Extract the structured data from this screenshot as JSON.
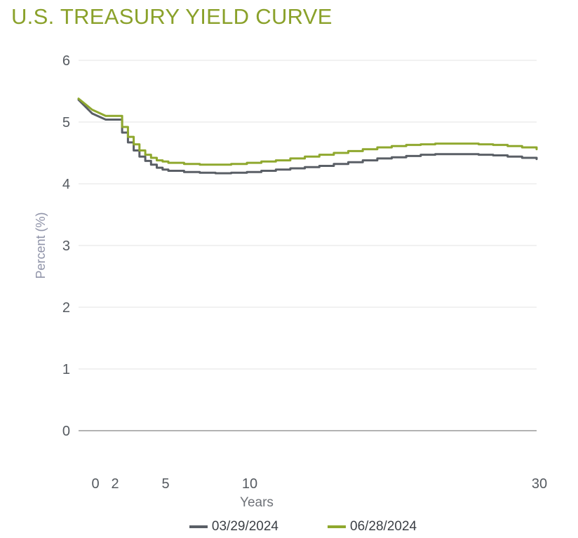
{
  "colors": {
    "title": "#8aa12a",
    "series_0": "#5a5f66",
    "series_1": "#8fa82e",
    "grid": "#e3e3e3",
    "zero_line": "#9a9a9a"
  },
  "chart_data": {
    "type": "line",
    "title": "U.S. TREASURY YIELD CURVE",
    "xlabel": "Years",
    "ylabel": "Percent (%)",
    "xlim": [
      0,
      30
    ],
    "ylim": [
      0,
      6
    ],
    "x_tick_labels": [
      {
        "label": "0",
        "value": 0
      },
      {
        "label": "2",
        "value": 2
      },
      {
        "label": "5",
        "value": 5
      },
      {
        "label": "10",
        "value": 10
      },
      {
        "label": "30",
        "value": 30
      }
    ],
    "y_ticks": [
      0,
      1,
      2,
      3,
      4,
      5,
      6
    ],
    "grid": true,
    "legend_position": "bottom-center",
    "series": [
      {
        "name": "03/29/2024",
        "color": "#5a5f66",
        "x": [
          0.0,
          0.25,
          0.5,
          1,
          1.5,
          2,
          2.5,
          3,
          3.5,
          4,
          4.5,
          5,
          6,
          7,
          8,
          9,
          10,
          11,
          12,
          13,
          14,
          15,
          16,
          17,
          18,
          19,
          20,
          21,
          22,
          23,
          24,
          25,
          26,
          27,
          28,
          29,
          30
        ],
        "y": [
          5.36,
          5.14,
          5.04,
          4.83,
          4.67,
          4.54,
          4.44,
          4.37,
          4.31,
          4.26,
          4.23,
          4.21,
          4.19,
          4.18,
          4.17,
          4.18,
          4.19,
          4.21,
          4.23,
          4.25,
          4.27,
          4.29,
          4.32,
          4.35,
          4.38,
          4.41,
          4.43,
          4.45,
          4.47,
          4.48,
          4.48,
          4.48,
          4.47,
          4.46,
          4.44,
          4.42,
          4.4
        ]
      },
      {
        "name": "06/28/2024",
        "color": "#8fa82e",
        "x": [
          0.0,
          0.25,
          0.5,
          1,
          1.5,
          2,
          2.5,
          3,
          3.5,
          4,
          4.5,
          5,
          6,
          7,
          8,
          9,
          10,
          11,
          12,
          13,
          14,
          15,
          16,
          17,
          18,
          19,
          20,
          21,
          22,
          23,
          24,
          25,
          26,
          27,
          28,
          29,
          30
        ],
        "y": [
          5.38,
          5.2,
          5.1,
          4.92,
          4.76,
          4.64,
          4.54,
          4.47,
          4.42,
          4.38,
          4.36,
          4.34,
          4.32,
          4.31,
          4.31,
          4.32,
          4.34,
          4.36,
          4.38,
          4.41,
          4.44,
          4.47,
          4.5,
          4.53,
          4.56,
          4.59,
          4.61,
          4.63,
          4.64,
          4.65,
          4.65,
          4.65,
          4.64,
          4.63,
          4.61,
          4.59,
          4.56
        ]
      }
    ]
  }
}
